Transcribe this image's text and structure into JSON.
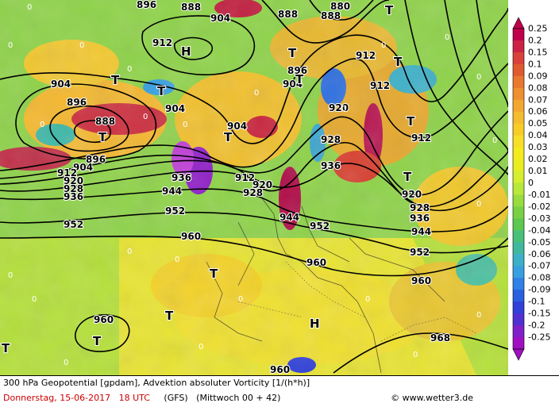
{
  "map": {
    "contour_labels": [
      "896",
      "888",
      "904",
      "912",
      "920",
      "928",
      "936",
      "944",
      "952",
      "960",
      "968",
      "880"
    ],
    "pressure_systems": [
      "H",
      "T"
    ],
    "zero_label": "0"
  },
  "legend": {
    "values": [
      "0.25",
      "0.2",
      "0.15",
      "0.1",
      "0.09",
      "0.08",
      "0.07",
      "0.06",
      "0.05",
      "0.04",
      "0.03",
      "0.02",
      "0.01",
      "0",
      "-0.01",
      "-0.02",
      "-0.03",
      "-0.04",
      "-0.05",
      "-0.06",
      "-0.07",
      "-0.08",
      "-0.09",
      "-0.1",
      "-0.15",
      "-0.2",
      "-0.25"
    ],
    "colors": [
      "#c0004a",
      "#cc2244",
      "#d8423a",
      "#e05a30",
      "#e87830",
      "#ee9030",
      "#f2a830",
      "#f6bc30",
      "#f8cc28",
      "#f8de28",
      "#f4ea20",
      "#e8ee20",
      "#d4ee30",
      "#b8e83a",
      "#98dc40",
      "#78d044",
      "#5cc850",
      "#48c078",
      "#40b8a0",
      "#3cb0c8",
      "#38a0e0",
      "#3080e8",
      "#2860e0",
      "#3040d8",
      "#5030d0",
      "#8020c8",
      "#a010c0"
    ]
  },
  "footer": {
    "line1": "300 hPa Geopotential [gpdam], Advektion absoluter Vorticity [1/(h*h)]",
    "date": "Donnerstag, 15-06-2017",
    "time": "18 UTC",
    "model": "(GFS)",
    "run": "(Mittwoch 00 + 42)",
    "credit": "© www.wetter3.de"
  }
}
